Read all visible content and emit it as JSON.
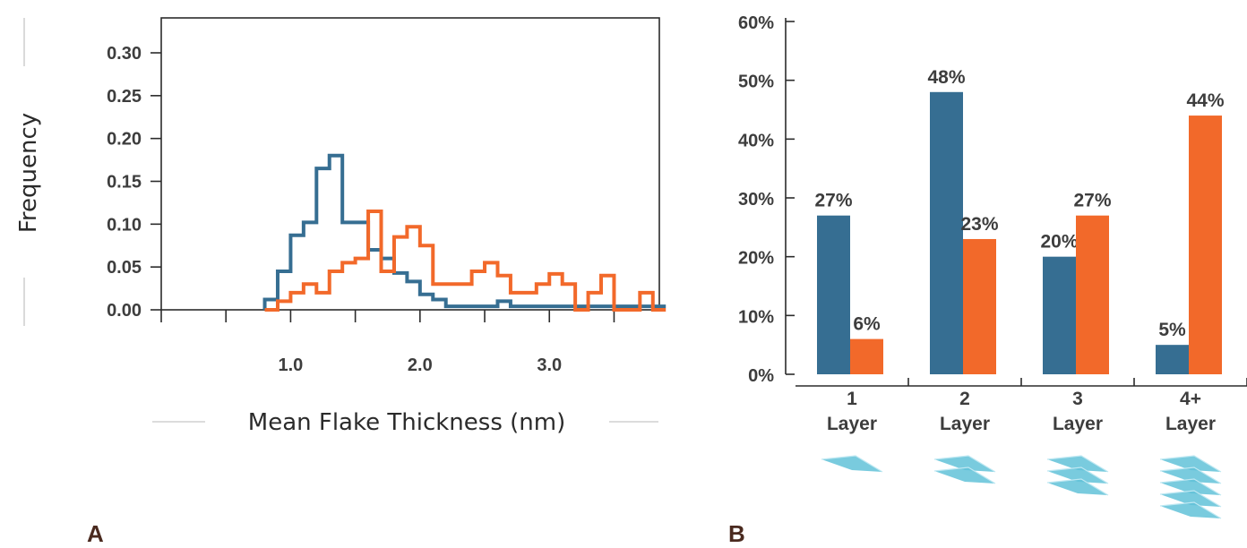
{
  "colors": {
    "series_a": "#366e92",
    "series_b": "#f2692a",
    "axis": "#2b2b2b",
    "text": "#3d3d3d",
    "flake": "#62c2d8"
  },
  "panel_labels": {
    "a": "A",
    "b": "B"
  },
  "chart_data": [
    {
      "type": "line",
      "panel": "A",
      "xlabel_main": "Mean Flake Thickness",
      "xlabel_unit": "(nm)",
      "ylabel": "Frequency",
      "xlim": [
        0.0,
        3.85
      ],
      "ylim": [
        0.0,
        0.33
      ],
      "y_ticks": [
        "0.00",
        "0.05",
        "0.10",
        "0.15",
        "0.20",
        "0.25",
        "0.30"
      ],
      "x_tick_labels": [
        {
          "x": 1.0,
          "label": "1.0"
        },
        {
          "x": 2.0,
          "label": "2.0"
        },
        {
          "x": 3.0,
          "label": "3.0"
        }
      ],
      "x_minor_ticks": [
        0.0,
        0.5,
        1.5,
        2.5,
        3.5
      ],
      "bin_width": 0.1,
      "series": [
        {
          "bin_starts": [
            0.8,
            0.9,
            1.0,
            1.1,
            1.2,
            1.3,
            1.4,
            1.5,
            1.6,
            1.7,
            1.8,
            1.9,
            2.0,
            2.1,
            2.2,
            2.3,
            2.4,
            2.5,
            2.6,
            2.7,
            2.8,
            2.9,
            3.0,
            3.1,
            3.2,
            3.3,
            3.4,
            3.5,
            3.6,
            3.7,
            3.8
          ],
          "values": [
            0.012,
            0.045,
            0.087,
            0.102,
            0.165,
            0.18,
            0.102,
            0.102,
            0.07,
            0.06,
            0.043,
            0.033,
            0.018,
            0.012,
            0.004,
            0.004,
            0.004,
            0.004,
            0.01,
            0.004,
            0.004,
            0.004,
            0.004,
            0.004,
            0.004,
            0.004,
            0.004,
            0.004,
            0.004,
            0.004,
            0.004
          ]
        },
        {
          "bin_starts": [
            0.8,
            0.9,
            1.0,
            1.1,
            1.2,
            1.3,
            1.4,
            1.5,
            1.6,
            1.7,
            1.8,
            1.9,
            2.0,
            2.1,
            2.2,
            2.3,
            2.4,
            2.5,
            2.6,
            2.7,
            2.8,
            2.9,
            3.0,
            3.1,
            3.2,
            3.3,
            3.4,
            3.5,
            3.6,
            3.7,
            3.8
          ],
          "values": [
            0.0,
            0.01,
            0.02,
            0.03,
            0.02,
            0.045,
            0.055,
            0.06,
            0.115,
            0.045,
            0.085,
            0.097,
            0.075,
            0.03,
            0.03,
            0.03,
            0.045,
            0.055,
            0.04,
            0.02,
            0.02,
            0.03,
            0.042,
            0.03,
            0.0,
            0.02,
            0.04,
            0.0,
            0.0,
            0.02,
            0.0
          ]
        }
      ]
    },
    {
      "type": "bar",
      "panel": "B",
      "categories": [
        "1 Layer",
        "2 Layer",
        "3 Layer",
        "4+ Layer"
      ],
      "category_lines": [
        [
          "1",
          "Layer"
        ],
        [
          "2",
          "Layer"
        ],
        [
          "3",
          "Layer"
        ],
        [
          "4+",
          "Layer"
        ]
      ],
      "ylim": [
        0,
        60
      ],
      "y_ticks": [
        "0%",
        "10%",
        "20%",
        "30%",
        "40%",
        "50%",
        "60%"
      ],
      "series": [
        {
          "values": [
            27,
            48,
            20,
            5
          ],
          "labels": [
            "27%",
            "48%",
            "20%",
            "5%"
          ]
        },
        {
          "values": [
            6,
            23,
            27,
            44
          ],
          "labels": [
            "6%",
            "23%",
            "27%",
            "44%"
          ]
        }
      ],
      "flake_counts": [
        1,
        2,
        3,
        5
      ]
    }
  ]
}
